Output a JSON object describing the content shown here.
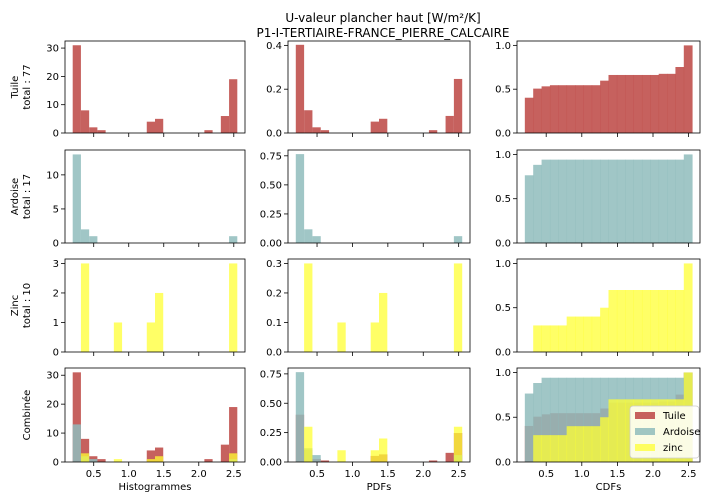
{
  "chart_data": {
    "type": "bar",
    "title": [
      "U-valeur plancher haut [W/m²/K]",
      "P1-I-TERTIAIRE-FRANCE_PIERRE_CALCAIRE"
    ],
    "colors": {
      "Tuile": "#c0504d",
      "Ardoise": "#8fbcbc",
      "zinc": "#ffff33"
    },
    "bins": [
      0.2,
      0.3175,
      0.435,
      0.5525,
      0.67,
      0.7875,
      0.905,
      1.0225,
      1.14,
      1.2575,
      1.375,
      1.4925,
      1.61,
      1.7275,
      1.845,
      1.9625,
      2.08,
      2.1975,
      2.315,
      2.4325,
      2.55
    ],
    "column_labels": [
      "Histogrammes",
      "PDFs",
      "CDFs"
    ],
    "rows": [
      {
        "name": "Tuile",
        "ylabel": [
          "Tuile",
          "total : 77"
        ],
        "series": [
          "Tuile"
        ],
        "counts": [
          31,
          8,
          2,
          1,
          0,
          0,
          0,
          0,
          0,
          4,
          5,
          0,
          0,
          0,
          0,
          0,
          1,
          0,
          6,
          19
        ],
        "ylims": [
          [
            0,
            32.5
          ],
          [
            0,
            0.42
          ],
          [
            0,
            1.05
          ]
        ],
        "yticks": [
          [
            0,
            10,
            20,
            30
          ],
          [
            0,
            0.2,
            0.4
          ],
          [
            0,
            0.5,
            1
          ]
        ],
        "ytick_labels": [
          [
            "0",
            "10",
            "20",
            "30"
          ],
          [
            "0.0",
            "0.2",
            "0.4"
          ],
          [
            "0.0",
            "0.5",
            "1.0"
          ]
        ]
      },
      {
        "name": "Ardoise",
        "ylabel": [
          "Ardoise",
          "total : 17"
        ],
        "series": [
          "Ardoise"
        ],
        "counts": [
          13,
          2,
          1,
          0,
          0,
          0,
          0,
          0,
          0,
          0,
          0,
          0,
          0,
          0,
          0,
          0,
          0,
          0,
          0,
          1
        ],
        "ylims": [
          [
            0,
            13.65
          ],
          [
            0,
            0.8
          ],
          [
            0,
            1.05
          ]
        ],
        "yticks": [
          [
            0,
            5,
            10
          ],
          [
            0,
            0.25,
            0.5,
            0.75
          ],
          [
            0,
            0.5,
            1
          ]
        ],
        "ytick_labels": [
          [
            "0",
            "5",
            "10"
          ],
          [
            "0.00",
            "0.25",
            "0.50",
            "0.75"
          ],
          [
            "0.0",
            "0.5",
            "1.0"
          ]
        ]
      },
      {
        "name": "zinc",
        "ylabel": [
          "Zinc",
          "total : 10"
        ],
        "series": [
          "zinc"
        ],
        "counts": [
          0,
          3,
          0,
          0,
          0,
          1,
          0,
          0,
          0,
          1,
          2,
          0,
          0,
          0,
          0,
          0,
          0,
          0,
          0,
          3
        ],
        "ylims": [
          [
            0,
            3.15
          ],
          [
            0,
            0.315
          ],
          [
            0,
            1.05
          ]
        ],
        "yticks": [
          [
            0,
            1,
            2,
            3
          ],
          [
            0,
            0.1,
            0.2,
            0.3
          ],
          [
            0,
            0.5,
            1
          ]
        ],
        "ytick_labels": [
          [
            "0",
            "1",
            "2",
            "3"
          ],
          [
            "0.0",
            "0.1",
            "0.2",
            "0.3"
          ],
          [
            "0.0",
            "0.5",
            "1.0"
          ]
        ]
      },
      {
        "name": "Combinée",
        "ylabel": [
          "Combinée"
        ],
        "series": [
          "Tuile",
          "Ardoise",
          "zinc"
        ],
        "ylims": [
          [
            0,
            32.5
          ],
          [
            0,
            0.8
          ],
          [
            0,
            1.05
          ]
        ],
        "yticks": [
          [
            0,
            10,
            20,
            30
          ],
          [
            0,
            0.25,
            0.5,
            0.75
          ],
          [
            0,
            0.5,
            1
          ]
        ],
        "ytick_labels": [
          [
            "0",
            "10",
            "20",
            "30"
          ],
          [
            "0.00",
            "0.25",
            "0.50",
            "0.75"
          ],
          [
            "0.0",
            "0.5",
            "1.0"
          ]
        ]
      }
    ],
    "xlim": [
      0.09,
      2.66
    ],
    "xticks": [
      0.5,
      1.0,
      1.5,
      2.0,
      2.5
    ],
    "xtick_labels": [
      "0.5",
      "1.0",
      "1.5",
      "2.0",
      "2.5"
    ],
    "legend": {
      "position": "lower right",
      "entries": [
        "Tuile",
        "Ardoise",
        "zinc"
      ]
    }
  }
}
